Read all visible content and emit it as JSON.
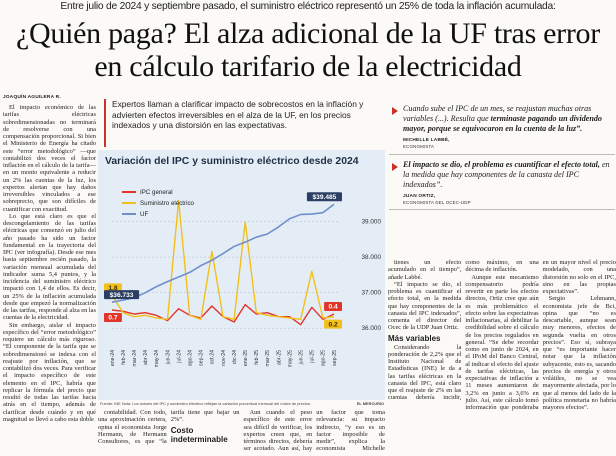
{
  "kicker": "Entre julio de 2024 y septiembre pasado, el suministro eléctrico representó un 25% de toda la inflación acumulada:",
  "headline": "¿Quién paga? El alza adicional de la UF tras error en cálculo tarifario de la electricidad",
  "byline": "JOAQUÍN AGUILERA R.",
  "left_column": [
    {
      "p": "El impacto económico de las tarifas eléctricas sobredimensionadas no terminará de resolverse con una compensación proporcional. Si bien el Ministerio de Energía ha citado este “error metodológico” —que contabilizó dos veces el factor inflación en el cálculo de la tarifa— en un monto equivalente a reducir un 2% las cuentas de la luz, los expertos alertan que hay daños irreversibles vinculados a ese sobreprecio, que son difíciles de cuantificar con exactitud."
    },
    {
      "p": "Lo que está claro es que el descongelamiento de las tarifas eléctricas que comenzó en julio del año pasado ha sido un factor fundamental en la trayectoria del IPC (ver infografía). Desde ese mes hasta septiembre recién pasado, la variación mensual acumulada del indicador suma 5,4 puntos, y la incidencia del suministro eléctrico impactó con 1,4 de ellos. Es decir, un 25% de la inflación acumulada desde que empezó la normalización de las tarifas, responde al alza en las cuentas de la electricidad."
    },
    {
      "p": "Sin embargo, aislar el impacto específico del “error metodológico” requiere un cálculo más riguroso. “El componente de la tarifa que se sobredimensionó se indexa con el reajuste por inflación, que se contabilizó dos veces. Para verificar el impacto específico de este elemento en el IPC, habría que replicar la fórmula del precio que resultó de todas las tarifas hacia atrás en el tiempo, además de clarificar desde cuándo y en qué magnitud se llevó a cabo esta doble"
    }
  ],
  "deck": "Expertos llaman a clarificar impacto de sobrecostos en la inflación y advierten efectos irreversibles en el alza de la UF, en los precios indexados y una distorsión en las expectativas.",
  "chart_data": {
    "type": "line",
    "title": "Variación del IPC y suministro eléctrico desde 2024",
    "categories": [
      "ene-24",
      "feb-24",
      "mar-24",
      "abr-24",
      "may-24",
      "jun-24",
      "jul-24",
      "ago-24",
      "sep-24",
      "oct-24",
      "nov-24",
      "dic-24",
      "ene-25",
      "feb-25",
      "mar-25",
      "abr-25",
      "may-25",
      "jun-25",
      "jul-25",
      "ago-25",
      "sep-25"
    ],
    "series": [
      {
        "name": "IPC general",
        "color": "#e3342a",
        "values": [
          0.7,
          0.6,
          0.4,
          0.5,
          0.3,
          -0.1,
          0.8,
          0.3,
          0.1,
          1.0,
          0.2,
          -0.2,
          1.1,
          0.4,
          0.5,
          0.2,
          0.2,
          -0.4,
          0.9,
          0.0,
          0.4
        ],
        "value_labels": [
          "0.7",
          null,
          null,
          null,
          null,
          null,
          null,
          null,
          null,
          null,
          null,
          null,
          null,
          null,
          null,
          null,
          null,
          null,
          null,
          null,
          "0.4"
        ]
      },
      {
        "name": "Suministro eléctrico",
        "color": "#f2c01b",
        "values": [
          1.8,
          0.5,
          0.2,
          0.3,
          0.1,
          0.0,
          8.9,
          0.3,
          0.0,
          5.1,
          0.2,
          0.0,
          7.3,
          0.5,
          0.3,
          0.2,
          0.1,
          0.0,
          3.6,
          0.1,
          0.2
        ],
        "value_labels": [
          "1.8",
          null,
          null,
          null,
          null,
          null,
          null,
          null,
          null,
          null,
          null,
          null,
          null,
          null,
          null,
          null,
          null,
          null,
          null,
          null,
          "0.2"
        ]
      },
      {
        "name": "UF",
        "color": "#6f8fcb",
        "axis": "y2",
        "values": [
          36733,
          36790,
          36857,
          37000,
          37170,
          37310,
          37440,
          37570,
          37760,
          37910,
          38100,
          38300,
          38420,
          38560,
          38650,
          38850,
          39080,
          39200,
          39210,
          39250,
          39485
        ],
        "value_labels": [
          "$36.733",
          null,
          null,
          null,
          null,
          null,
          null,
          null,
          null,
          null,
          null,
          null,
          null,
          null,
          null,
          null,
          null,
          null,
          null,
          null,
          "$39.485"
        ]
      }
    ],
    "ylim": [
      -2,
      10
    ],
    "y2lim": [
      35500,
      40000
    ],
    "y2ticks": [
      {
        "value": 36000,
        "label": "36.000"
      },
      {
        "value": 37000,
        "label": "37.000"
      },
      {
        "value": 38000,
        "label": "38.000"
      },
      {
        "value": 39000,
        "label": "39.000"
      }
    ],
    "grid": true,
    "legend": "upper left",
    "source": "Fuente: INE",
    "note": "Nota: Los valores del IPC y suministro eléctrico reflejan la variación porcentual mensual del índice de precios.",
    "credit": "EL MERCURIO"
  },
  "lower_middle": [
    {
      "p": "contabilidad. Con todo, una aproximación certera, opina el economista Jorge Hermann, de Hermann Consultores, es que “la tarifa tiene que bajar un 2%”."
    },
    {
      "h": "Costo indeterminable"
    },
    {
      "p": "Aun cuando el peso específico de este error sea difícil de verificar, los expertos creen que, en términos directos, debería ser acotado. Aun así, hay un factor que toma relevancia: su impacto indirecto, “y eso es un factor imposible de medir”, explica la economista Michelle Labbé. A la par del IPC, el valor de la UF aumentó desde $36.733 a $39.485. Es decir, un incremento del 7,4%."
    }
  ],
  "quotes": [
    {
      "parts": [
        {
          "text": "Cuando sube el IPC de un mes, se reajustan muchas otras variables (...). Resulta que ",
          "bold": false
        },
        {
          "text": "terminaste pagando un dividendo mayor, porque se equivocaron en la cuenta de la luz”.",
          "bold": true
        }
      ],
      "name": "MICHELLE LABBÉ,",
      "role": "ECONOMISTA"
    },
    {
      "parts": [
        {
          "text": "El impacto se dio, el problema es cuantificar el efecto total, ",
          "bold": true
        },
        {
          "text": "en la medida que hay componentes de la canasta del IPC indexados”.",
          "bold": false
        }
      ],
      "name": "JUAN ORTIZ,",
      "role": "ECONOMISTA DEL OCEC-UDP"
    }
  ],
  "lower_right": [
    {
      "p": "tienes un efecto acumulado en el tiempo”, añade Labbé."
    },
    {
      "p": "“El impacto se dio, el problema es cuantificar el efecto total, en la medida que hay componentes de la canasta del IPC indexados”, comenta el director del Ocec de la UDP Juan Ortiz."
    },
    {
      "h": "Más variables"
    },
    {
      "p": "Considerando la ponderación de 2,2% que el Instituto Nacional de Estadísticas (INE) le da a las tarifas eléctricas en la canasta del IPC, está claro que el reajuste de 2% en las cuentas debería incidir, como máximo, en una décima de inflación."
    },
    {
      "p": "Aunque este mecanismo compensatorio podría revertir en parte los efectos directos, Ortiz cree que aún es más problemático el efecto sobre las expectativas inflacionarias, al debilitar la credibilidad sobre el cálculo de los precios regulados en general. “Se debe recordar como en junio de 2024, en el IPoM del Banco Central, al indicar el efecto del ajuste de tarifas eléctricas, las expectativas de inflación a 11 meses aumentaron de 3,2% en junio a 3,6% en julio. Así, este cálculo tomó información que ponderaba en un mayor nivel el precio modelado, con una distorsión no solo en el IPC, sino en las propias expectativas”."
    },
    {
      "p": "Sergio Lehmann, economista jefe de Bci, opina que “no es descartable, aunque sean muy menores, efectos de segunda vuelta en otros precios”. Eso sí, subraya que “es importante hacer notar que la inflación subyacente, esto es, sacando precios de energía y otros volátiles, no se vea mayormente afectada, por lo que al menos del lado de la política monetaria no habría mayores efectos”."
    }
  ]
}
